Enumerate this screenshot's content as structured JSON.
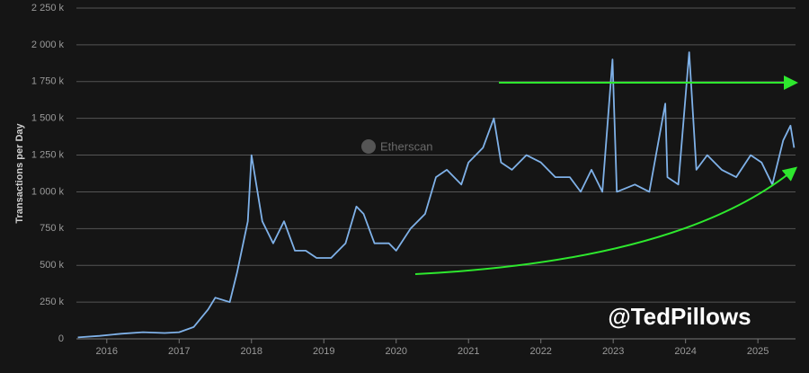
{
  "chart_data": {
    "type": "line",
    "y_label": "Transactions per Day",
    "watermark": "Etherscan",
    "annotation": "@TedPillows",
    "color": "#7fb1e8",
    "grid": true,
    "x": [
      2015.6,
      2015.9,
      2016.2,
      2016.5,
      2016.8,
      2017.0,
      2017.2,
      2017.4,
      2017.5,
      2017.7,
      2017.8,
      2017.95,
      2018.0,
      2018.05,
      2018.15,
      2018.3,
      2018.45,
      2018.6,
      2018.75,
      2018.9,
      2019.1,
      2019.3,
      2019.45,
      2019.55,
      2019.7,
      2019.9,
      2020.0,
      2020.2,
      2020.4,
      2020.55,
      2020.7,
      2020.9,
      2021.0,
      2021.2,
      2021.35,
      2021.45,
      2021.6,
      2021.8,
      2022.0,
      2022.2,
      2022.4,
      2022.55,
      2022.7,
      2022.85,
      2022.99,
      2023.05,
      2023.3,
      2023.5,
      2023.72,
      2023.75,
      2023.9,
      2024.05,
      2024.15,
      2024.3,
      2024.5,
      2024.7,
      2024.9,
      2025.05,
      2025.2,
      2025.35,
      2025.45,
      2025.5
    ],
    "values": [
      10000,
      20000,
      35000,
      45000,
      40000,
      45000,
      80000,
      200000,
      280000,
      250000,
      450000,
      800000,
      1250000,
      1100000,
      800000,
      650000,
      800000,
      600000,
      600000,
      550000,
      550000,
      650000,
      900000,
      850000,
      650000,
      650000,
      600000,
      750000,
      850000,
      1100000,
      1150000,
      1050000,
      1200000,
      1300000,
      1500000,
      1200000,
      1150000,
      1250000,
      1200000,
      1100000,
      1100000,
      1000000,
      1150000,
      1000000,
      1900000,
      1000000,
      1050000,
      1000000,
      1600000,
      1100000,
      1050000,
      1950000,
      1150000,
      1250000,
      1150000,
      1100000,
      1250000,
      1200000,
      1050000,
      1350000,
      1450000,
      1300000
    ],
    "xlim": [
      2015.58,
      2025.52
    ],
    "xticks": [
      2016,
      2017,
      2018,
      2019,
      2020,
      2021,
      2022,
      2023,
      2024,
      2025
    ],
    "ylim": [
      0,
      2250000
    ],
    "yticks": [
      0,
      {
        "value": 250000,
        "label": "250 k"
      },
      {
        "value": 500000,
        "label": "500 k"
      },
      {
        "value": 750000,
        "label": "750 k"
      },
      {
        "value": 1000000,
        "label": "1 000 k"
      },
      {
        "value": 1250000,
        "label": "1 250 k"
      },
      {
        "value": 1500000,
        "label": "1 500 k"
      },
      {
        "value": 1750000,
        "label": "1 750 k"
      },
      {
        "value": 2000000,
        "label": "2 000 k"
      },
      {
        "value": 2250000,
        "label": "2 250 k"
      }
    ]
  }
}
